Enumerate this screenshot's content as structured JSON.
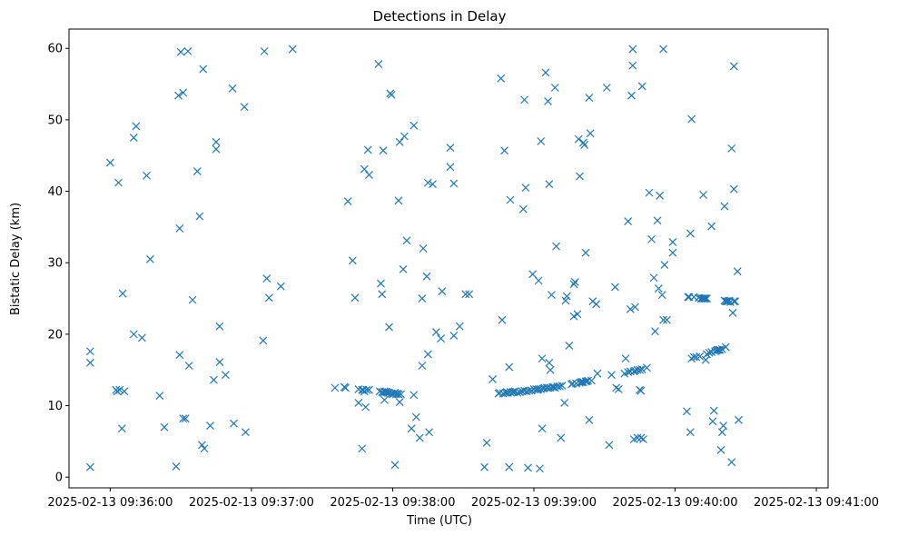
{
  "chart_data": {
    "type": "scatter",
    "title": "Detections in Delay",
    "xlabel": "Time (UTC)",
    "ylabel": "Bistatic Delay (km)",
    "marker": "x",
    "color": "#1f77b4",
    "grid": false,
    "x_unit": "seconds after 2025-02-13 09:35:00 UTC",
    "xlim": [
      42.5,
      365
    ],
    "ylim": [
      -1.5,
      62.7
    ],
    "x_ticks": [
      {
        "value": 60,
        "label": "2025-02-13 09:36:00"
      },
      {
        "value": 120,
        "label": "2025-02-13 09:37:00"
      },
      {
        "value": 180,
        "label": "2025-02-13 09:38:00"
      },
      {
        "value": 240,
        "label": "2025-02-13 09:39:00"
      },
      {
        "value": 300,
        "label": "2025-02-13 09:40:00"
      },
      {
        "value": 360,
        "label": "2025-02-13 09:41:00"
      }
    ],
    "y_ticks": [
      {
        "value": 0,
        "label": "0"
      },
      {
        "value": 10,
        "label": "10"
      },
      {
        "value": 20,
        "label": "20"
      },
      {
        "value": 30,
        "label": "30"
      },
      {
        "value": 40,
        "label": "40"
      },
      {
        "value": 50,
        "label": "50"
      },
      {
        "value": 60,
        "label": "60"
      }
    ],
    "points": [
      [
        51.5,
        17.6
      ],
      [
        51.5,
        16.0
      ],
      [
        51.5,
        1.4
      ],
      [
        60.0,
        44.0
      ],
      [
        62.5,
        12.2
      ],
      [
        63.0,
        12.0
      ],
      [
        63.5,
        41.2
      ],
      [
        64.0,
        12.2
      ],
      [
        65.0,
        6.8
      ],
      [
        65.3,
        25.7
      ],
      [
        66.0,
        12.0
      ],
      [
        70.0,
        20.0
      ],
      [
        70.0,
        47.5
      ],
      [
        71.0,
        49.1
      ],
      [
        73.5,
        19.5
      ],
      [
        75.5,
        42.2
      ],
      [
        77.0,
        30.5
      ],
      [
        81.0,
        11.4
      ],
      [
        83.0,
        7.0
      ],
      [
        88.0,
        1.5
      ],
      [
        89.0,
        53.4
      ],
      [
        89.5,
        17.1
      ],
      [
        89.5,
        34.8
      ],
      [
        90.0,
        59.5
      ],
      [
        91.0,
        53.8
      ],
      [
        91.0,
        8.2
      ],
      [
        92.0,
        8.2
      ],
      [
        93.0,
        59.6
      ],
      [
        93.5,
        15.6
      ],
      [
        95.0,
        24.8
      ],
      [
        97.0,
        42.8
      ],
      [
        98.0,
        36.5
      ],
      [
        99.0,
        4.5
      ],
      [
        99.5,
        57.1
      ],
      [
        100.0,
        4.0
      ],
      [
        102.5,
        7.2
      ],
      [
        104.0,
        13.6
      ],
      [
        105.0,
        46.9
      ],
      [
        105.0,
        45.9
      ],
      [
        106.5,
        21.1
      ],
      [
        106.5,
        16.1
      ],
      [
        109.0,
        14.3
      ],
      [
        112.0,
        54.4
      ],
      [
        112.5,
        7.5
      ],
      [
        117.0,
        51.8
      ],
      [
        117.5,
        6.3
      ],
      [
        125.0,
        19.1
      ],
      [
        125.5,
        59.6
      ],
      [
        126.5,
        27.8
      ],
      [
        127.5,
        25.1
      ],
      [
        132.5,
        26.7
      ],
      [
        137.5,
        59.9
      ],
      [
        155.5,
        12.5
      ],
      [
        159.5,
        12.6
      ],
      [
        160.0,
        12.5
      ],
      [
        161.0,
        38.6
      ],
      [
        163.0,
        30.3
      ],
      [
        164.0,
        25.1
      ],
      [
        165.5,
        12.3
      ],
      [
        165.5,
        10.4
      ],
      [
        167.0,
        12.2
      ],
      [
        167.0,
        4.0
      ],
      [
        167.5,
        12.2
      ],
      [
        168.0,
        43.1
      ],
      [
        168.0,
        12.0
      ],
      [
        168.5,
        9.8
      ],
      [
        169.0,
        12.2
      ],
      [
        169.5,
        45.8
      ],
      [
        170.0,
        12.2
      ],
      [
        170.0,
        42.3
      ],
      [
        174.0,
        57.8
      ],
      [
        174.5,
        12.0
      ],
      [
        175.0,
        27.1
      ],
      [
        175.5,
        11.9
      ],
      [
        175.5,
        25.6
      ],
      [
        176.0,
        45.7
      ],
      [
        176.0,
        11.8
      ],
      [
        176.5,
        12.0
      ],
      [
        176.5,
        10.8
      ],
      [
        177.0,
        11.9
      ],
      [
        177.5,
        11.9
      ],
      [
        178.0,
        11.8
      ],
      [
        178.5,
        21.0
      ],
      [
        178.5,
        11.8
      ],
      [
        179.0,
        53.7
      ],
      [
        179.5,
        11.7
      ],
      [
        179.5,
        53.5
      ],
      [
        180.0,
        11.6
      ],
      [
        180.5,
        11.7
      ],
      [
        181.0,
        11.8
      ],
      [
        181.0,
        1.7
      ],
      [
        181.5,
        11.6
      ],
      [
        182.0,
        11.7
      ],
      [
        182.5,
        38.7
      ],
      [
        182.5,
        11.6
      ],
      [
        183.0,
        10.5
      ],
      [
        183.0,
        46.9
      ],
      [
        183.5,
        11.6
      ],
      [
        184.5,
        29.1
      ],
      [
        185.0,
        47.7
      ],
      [
        186.0,
        33.1
      ],
      [
        188.0,
        6.8
      ],
      [
        189.0,
        49.2
      ],
      [
        189.0,
        11.5
      ],
      [
        190.0,
        8.4
      ],
      [
        191.5,
        5.5
      ],
      [
        192.5,
        15.6
      ],
      [
        192.5,
        25.0
      ],
      [
        193.0,
        32.0
      ],
      [
        194.5,
        28.1
      ],
      [
        195.0,
        41.2
      ],
      [
        195.0,
        17.2
      ],
      [
        195.5,
        6.3
      ],
      [
        197.0,
        41.0
      ],
      [
        198.5,
        20.3
      ],
      [
        200.5,
        19.4
      ],
      [
        201.0,
        26.0
      ],
      [
        204.5,
        46.1
      ],
      [
        204.5,
        43.4
      ],
      [
        206.0,
        41.1
      ],
      [
        206.0,
        19.8
      ],
      [
        208.5,
        21.1
      ],
      [
        211.0,
        25.6
      ],
      [
        212.5,
        25.6
      ],
      [
        219.0,
        1.4
      ],
      [
        220.0,
        4.8
      ],
      [
        222.5,
        13.7
      ],
      [
        225.0,
        11.7
      ],
      [
        225.5,
        11.8
      ],
      [
        226.0,
        55.8
      ],
      [
        226.5,
        22.0
      ],
      [
        227.0,
        11.7
      ],
      [
        227.5,
        45.7
      ],
      [
        228.0,
        11.8
      ],
      [
        228.5,
        11.9
      ],
      [
        229.0,
        11.8
      ],
      [
        229.5,
        15.4
      ],
      [
        229.5,
        1.4
      ],
      [
        230.0,
        38.8
      ],
      [
        230.0,
        11.9
      ],
      [
        231.0,
        11.9
      ],
      [
        231.5,
        11.9
      ],
      [
        232.0,
        12.0
      ],
      [
        233.0,
        11.8
      ],
      [
        234.0,
        11.9
      ],
      [
        235.0,
        12.0
      ],
      [
        235.5,
        37.5
      ],
      [
        236.0,
        52.8
      ],
      [
        236.0,
        12.1
      ],
      [
        236.5,
        40.5
      ],
      [
        237.0,
        12.0
      ],
      [
        237.5,
        1.3
      ],
      [
        238.0,
        12.1
      ],
      [
        239.0,
        12.1
      ],
      [
        239.5,
        28.4
      ],
      [
        240.0,
        12.3
      ],
      [
        241.0,
        12.3
      ],
      [
        241.5,
        12.2
      ],
      [
        242.0,
        27.5
      ],
      [
        242.0,
        12.3
      ],
      [
        242.5,
        1.2
      ],
      [
        243.0,
        47.0
      ],
      [
        243.0,
        12.3
      ],
      [
        243.5,
        6.8
      ],
      [
        243.5,
        16.6
      ],
      [
        244.0,
        12.4
      ],
      [
        244.5,
        12.5
      ],
      [
        245.0,
        56.6
      ],
      [
        245.5,
        12.5
      ],
      [
        246.0,
        52.6
      ],
      [
        246.0,
        12.5
      ],
      [
        246.5,
        41.0
      ],
      [
        246.5,
        16.0
      ],
      [
        247.0,
        15.0
      ],
      [
        247.0,
        12.5
      ],
      [
        247.5,
        25.5
      ],
      [
        248.0,
        12.6
      ],
      [
        248.5,
        12.6
      ],
      [
        249.0,
        54.5
      ],
      [
        249.0,
        12.5
      ],
      [
        249.5,
        32.3
      ],
      [
        250.0,
        12.7
      ],
      [
        251.0,
        12.7
      ],
      [
        251.5,
        5.5
      ],
      [
        252.0,
        12.8
      ],
      [
        253.0,
        10.4
      ],
      [
        253.5,
        24.7
      ],
      [
        254.0,
        25.3
      ],
      [
        255.0,
        18.4
      ],
      [
        256.0,
        13.0
      ],
      [
        256.5,
        13.1
      ],
      [
        257.0,
        27.0
      ],
      [
        257.0,
        22.5
      ],
      [
        257.5,
        27.3
      ],
      [
        258.0,
        13.1
      ],
      [
        258.5,
        22.8
      ],
      [
        259.0,
        47.3
      ],
      [
        259.5,
        13.2
      ],
      [
        259.5,
        42.1
      ],
      [
        260.0,
        13.3
      ],
      [
        260.5,
        13.3
      ],
      [
        261.0,
        46.8
      ],
      [
        261.0,
        13.3
      ],
      [
        261.5,
        46.5
      ],
      [
        262.0,
        31.4
      ],
      [
        262.0,
        13.4
      ],
      [
        262.5,
        13.4
      ],
      [
        263.0,
        13.5
      ],
      [
        263.5,
        53.1
      ],
      [
        263.5,
        8.0
      ],
      [
        264.0,
        48.1
      ],
      [
        264.5,
        13.5
      ],
      [
        265.0,
        24.6
      ],
      [
        266.5,
        24.2
      ],
      [
        267.0,
        14.5
      ],
      [
        271.0,
        54.5
      ],
      [
        272.0,
        4.5
      ],
      [
        273.0,
        14.3
      ],
      [
        274.5,
        26.6
      ],
      [
        275.0,
        12.5
      ],
      [
        276.0,
        12.3
      ],
      [
        278.5,
        14.5
      ],
      [
        279.0,
        16.6
      ],
      [
        280.0,
        35.8
      ],
      [
        280.0,
        14.7
      ],
      [
        281.0,
        23.5
      ],
      [
        281.0,
        14.8
      ],
      [
        281.5,
        53.4
      ],
      [
        282.0,
        59.9
      ],
      [
        282.0,
        57.6
      ],
      [
        282.5,
        14.8
      ],
      [
        282.5,
        5.3
      ],
      [
        283.0,
        23.8
      ],
      [
        283.0,
        14.9
      ],
      [
        284.0,
        5.5
      ],
      [
        284.0,
        15.0
      ],
      [
        285.0,
        12.2
      ],
      [
        285.0,
        15.0
      ],
      [
        285.5,
        5.5
      ],
      [
        285.5,
        12.1
      ],
      [
        286.0,
        54.7
      ],
      [
        286.0,
        15.1
      ],
      [
        286.5,
        5.3
      ],
      [
        288.0,
        15.3
      ],
      [
        289.0,
        39.8
      ],
      [
        290.0,
        33.3
      ],
      [
        291.0,
        27.9
      ],
      [
        291.5,
        20.4
      ],
      [
        292.5,
        35.9
      ],
      [
        293.0,
        26.4
      ],
      [
        293.5,
        39.4
      ],
      [
        294.5,
        25.5
      ],
      [
        295.0,
        22.0
      ],
      [
        295.0,
        59.9
      ],
      [
        295.5,
        29.7
      ],
      [
        296.5,
        22.0
      ],
      [
        299.0,
        32.9
      ],
      [
        299.0,
        31.4
      ],
      [
        305.0,
        9.2
      ],
      [
        305.5,
        25.2
      ],
      [
        306.0,
        25.2
      ],
      [
        306.5,
        34.1
      ],
      [
        306.5,
        6.3
      ],
      [
        307.0,
        16.6
      ],
      [
        307.0,
        50.1
      ],
      [
        308.0,
        25.2
      ],
      [
        308.0,
        16.8
      ],
      [
        309.0,
        16.8
      ],
      [
        310.0,
        25.1
      ],
      [
        310.5,
        16.9
      ],
      [
        311.0,
        25.0
      ],
      [
        311.5,
        25.0
      ],
      [
        312.0,
        25.0
      ],
      [
        312.0,
        39.5
      ],
      [
        312.5,
        25.0
      ],
      [
        313.0,
        25.0
      ],
      [
        313.0,
        16.4
      ],
      [
        313.5,
        25.0
      ],
      [
        313.5,
        17.2
      ],
      [
        314.5,
        17.4
      ],
      [
        315.5,
        35.1
      ],
      [
        315.5,
        17.5
      ],
      [
        316.0,
        7.8
      ],
      [
        316.5,
        9.3
      ],
      [
        317.0,
        17.6
      ],
      [
        317.5,
        17.7
      ],
      [
        318.0,
        17.8
      ],
      [
        318.5,
        17.8
      ],
      [
        319.0,
        17.8
      ],
      [
        319.5,
        3.8
      ],
      [
        320.0,
        17.9
      ],
      [
        320.0,
        6.3
      ],
      [
        320.5,
        7.2
      ],
      [
        321.0,
        24.7
      ],
      [
        321.0,
        37.9
      ],
      [
        321.5,
        18.2
      ],
      [
        321.5,
        24.6
      ],
      [
        322.0,
        24.6
      ],
      [
        322.5,
        24.6
      ],
      [
        323.0,
        24.7
      ],
      [
        323.5,
        24.5
      ],
      [
        324.0,
        46.0
      ],
      [
        324.0,
        2.1
      ],
      [
        324.5,
        23.0
      ],
      [
        325.0,
        24.6
      ],
      [
        325.0,
        40.3
      ],
      [
        325.0,
        57.5
      ],
      [
        325.5,
        24.6
      ],
      [
        326.5,
        28.8
      ],
      [
        327.0,
        8.0
      ]
    ]
  }
}
